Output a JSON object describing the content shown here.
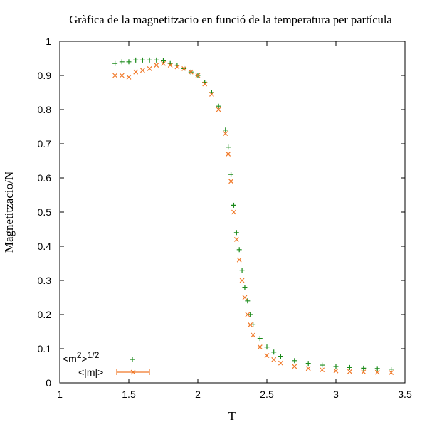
{
  "chart_data": {
    "type": "scatter",
    "title": "Gràfica de la magnetitzacio en funció de la temperatura per partícula",
    "xlabel": "T",
    "ylabel": "Magnetitzacio/N",
    "xlim": [
      1,
      3.5
    ],
    "ylim": [
      0,
      1
    ],
    "xticks": [
      "1",
      "1.5",
      "2",
      "2.5",
      "3",
      "3.5"
    ],
    "yticks": [
      "0",
      "0.1",
      "0.2",
      "0.3",
      "0.4",
      "0.5",
      "0.6",
      "0.7",
      "0.8",
      "0.9",
      "1"
    ],
    "grid": false,
    "legend_position": "bottom-left",
    "series": [
      {
        "name": "<m",
        "name_sup1": "2",
        "name_mid": ">",
        "name_sup2": "1/2",
        "color": "#1a8a1a",
        "marker": "plus",
        "x": [
          1.4,
          1.45,
          1.5,
          1.55,
          1.6,
          1.65,
          1.7,
          1.75,
          1.8,
          1.85,
          1.9,
          1.95,
          2.0,
          2.05,
          2.1,
          2.15,
          2.2,
          2.22,
          2.24,
          2.26,
          2.28,
          2.3,
          2.32,
          2.34,
          2.36,
          2.38,
          2.4,
          2.45,
          2.5,
          2.55,
          2.6,
          2.7,
          2.8,
          2.9,
          3.0,
          3.1,
          3.2,
          3.3,
          3.4
        ],
        "y": [
          0.935,
          0.94,
          0.94,
          0.945,
          0.945,
          0.945,
          0.945,
          0.943,
          0.935,
          0.93,
          0.92,
          0.91,
          0.9,
          0.88,
          0.85,
          0.81,
          0.74,
          0.69,
          0.61,
          0.52,
          0.44,
          0.39,
          0.33,
          0.28,
          0.24,
          0.2,
          0.17,
          0.13,
          0.105,
          0.09,
          0.078,
          0.065,
          0.057,
          0.052,
          0.048,
          0.045,
          0.043,
          0.042,
          0.04
        ]
      },
      {
        "name": "<|m|>",
        "color": "#f07828",
        "marker": "x",
        "errorbar": true,
        "x": [
          1.4,
          1.45,
          1.5,
          1.55,
          1.6,
          1.65,
          1.7,
          1.75,
          1.8,
          1.85,
          1.9,
          1.95,
          2.0,
          2.05,
          2.1,
          2.15,
          2.2,
          2.22,
          2.24,
          2.26,
          2.28,
          2.3,
          2.32,
          2.34,
          2.36,
          2.38,
          2.4,
          2.45,
          2.5,
          2.55,
          2.6,
          2.7,
          2.8,
          2.9,
          3.0,
          3.1,
          3.2,
          3.3,
          3.4
        ],
        "y": [
          0.9,
          0.9,
          0.895,
          0.91,
          0.915,
          0.92,
          0.93,
          0.935,
          0.93,
          0.925,
          0.92,
          0.91,
          0.9,
          0.875,
          0.845,
          0.8,
          0.73,
          0.67,
          0.59,
          0.5,
          0.42,
          0.36,
          0.3,
          0.25,
          0.2,
          0.17,
          0.14,
          0.105,
          0.08,
          0.068,
          0.058,
          0.048,
          0.042,
          0.038,
          0.035,
          0.033,
          0.032,
          0.031,
          0.03
        ]
      }
    ]
  }
}
